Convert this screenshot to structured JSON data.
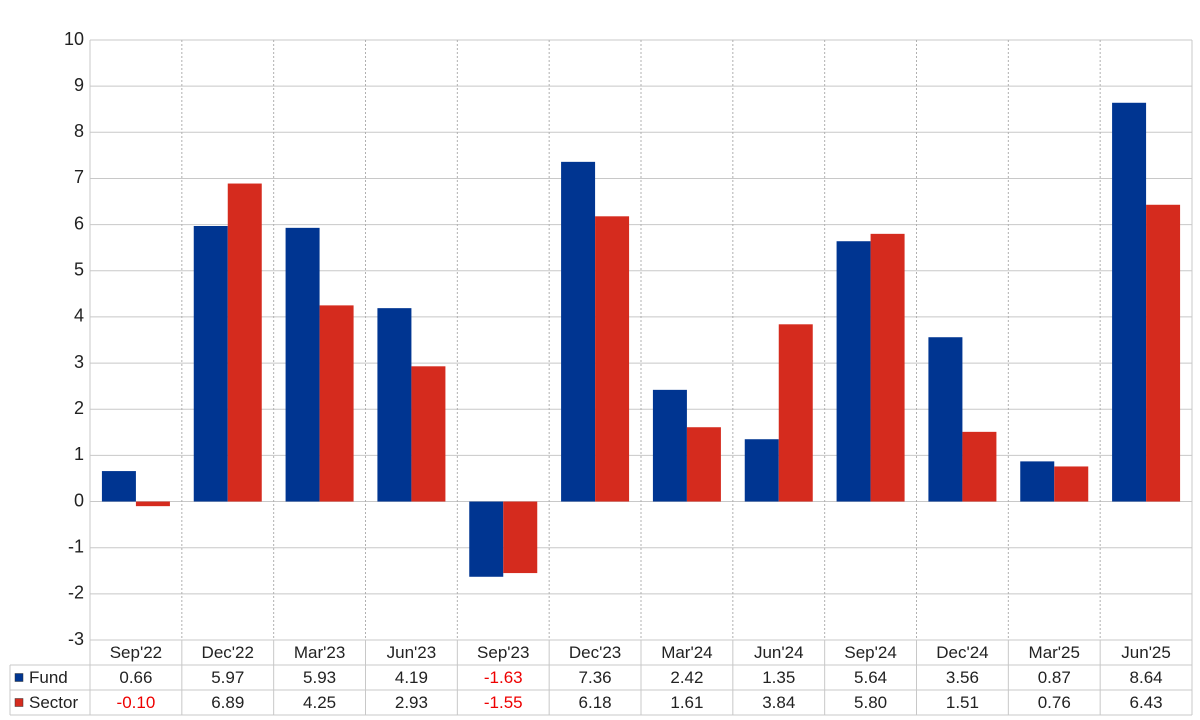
{
  "chart_data": {
    "type": "bar",
    "categories": [
      "Sep'22",
      "Dec'22",
      "Mar'23",
      "Jun'23",
      "Sep'23",
      "Dec'23",
      "Mar'24",
      "Jun'24",
      "Sep'24",
      "Dec'24",
      "Mar'25",
      "Jun'25"
    ],
    "series": [
      {
        "name": "Fund",
        "color": "#003591",
        "values": [
          0.66,
          5.97,
          5.93,
          4.19,
          -1.63,
          7.36,
          2.42,
          1.35,
          5.64,
          3.56,
          0.87,
          8.64
        ],
        "value_labels": [
          "0.66",
          "5.97",
          "5.93",
          "4.19",
          "-1.63",
          "7.36",
          "2.42",
          "1.35",
          "5.64",
          "3.56",
          "0.87",
          "8.64"
        ]
      },
      {
        "name": "Sector",
        "color": "#d52b1e",
        "values": [
          -0.1,
          6.89,
          4.25,
          2.93,
          -1.55,
          6.18,
          1.61,
          3.84,
          5.8,
          1.51,
          0.76,
          6.43
        ],
        "value_labels": [
          "-0.10",
          "6.89",
          "4.25",
          "2.93",
          "-1.55",
          "6.18",
          "1.61",
          "3.84",
          "5.80",
          "1.51",
          "0.76",
          "6.43"
        ]
      }
    ],
    "ylim": [
      -3,
      10
    ],
    "yticks": [
      -3,
      -2,
      -1,
      0,
      1,
      2,
      3,
      4,
      5,
      6,
      7,
      8,
      9,
      10
    ],
    "grid": true,
    "negative_label_color": "#ee0000"
  }
}
